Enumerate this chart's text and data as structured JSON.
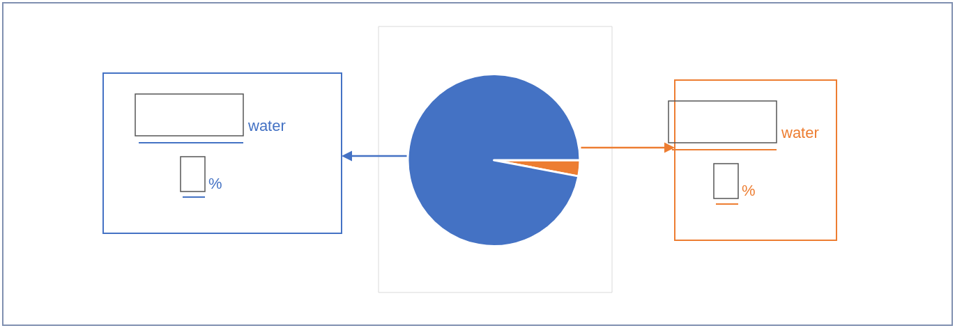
{
  "chart_data": {
    "type": "pie",
    "categories": [
      null,
      null
    ],
    "values": [
      3,
      97
    ],
    "colors": [
      "#ed7d31",
      "#4472c4"
    ],
    "annotations": [
      "water",
      "%",
      "water",
      "%"
    ]
  }
}
